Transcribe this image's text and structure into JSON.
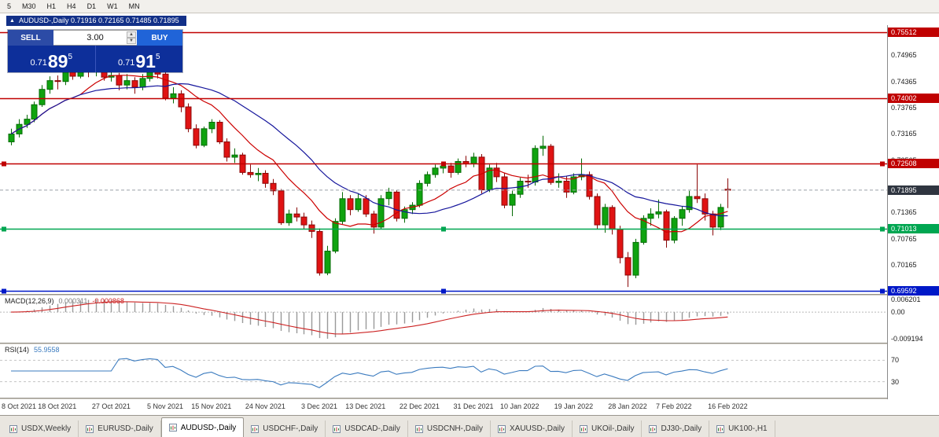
{
  "toolbar": {
    "timeframes": [
      "5",
      "M30",
      "H1",
      "H4",
      "D1",
      "W1",
      "MN"
    ]
  },
  "window": {
    "marker": "▲",
    "title": "AUDUSD-,Daily 0.71916 0.72165 0.71485 0.71895"
  },
  "one_click": {
    "sell_label": "SELL",
    "buy_label": "BUY",
    "volume": "3.00",
    "volume_up_icon": "▲",
    "volume_down_icon": "▼",
    "sell_price_prefix": "0.71",
    "sell_price_big": "89",
    "sell_price_sup": "5",
    "buy_price_prefix": "0.71",
    "buy_price_big": "91",
    "buy_price_sup": "5"
  },
  "macd_panel": {
    "name": "MACD(12,26,9)",
    "value_main": "0.000311",
    "value_signal": "-0.000868",
    "axis_top": "0.006201",
    "axis_zero": "0.00",
    "axis_bottom": "-0.009194"
  },
  "rsi_panel": {
    "name": "RSI(14)",
    "value": "55.9558",
    "axis_top": "70",
    "axis_bottom": "30"
  },
  "tabs": {
    "active_index": 2,
    "items": [
      "USDX,Weekly",
      "EURUSD-,Daily",
      "AUDUSD-,Daily",
      "USDCHF-,Daily",
      "USDCAD-,Daily",
      "USDCNH-,Daily",
      "XAUUSD-,Daily",
      "UKOil-,Daily",
      "DJ30-,Daily",
      "UK100-,H1"
    ]
  },
  "chart_data": {
    "type": "candlestick",
    "symbol": "AUDUSD-",
    "timeframe": "Daily",
    "current_price": 0.71895,
    "current_badge": {
      "label": "0.71895",
      "color": "#2f3540"
    },
    "price_range": [
      0.6952,
      0.7567
    ],
    "y_ticks": [
      0.74965,
      0.74365,
      0.73765,
      0.73165,
      0.72565,
      0.71365,
      0.70765,
      0.70165
    ],
    "levels": [
      {
        "price": 0.75512,
        "label": "0.75512",
        "color": "#c00000",
        "selected": false
      },
      {
        "price": 0.74002,
        "label": "0.74002",
        "color": "#c00000",
        "selected": false
      },
      {
        "price": 0.72508,
        "label": "0.72508",
        "color": "#c00000",
        "selected": true
      },
      {
        "price": 0.71013,
        "label": "0.71013",
        "color": "#00a651",
        "selected": true
      },
      {
        "price": 0.69592,
        "label": "0.69592",
        "color": "#0018c8",
        "selected": true
      }
    ],
    "x_labels": [
      {
        "text": "8 Oct 2021",
        "bar": 0
      },
      {
        "text": "18 Oct 2021",
        "bar": 6
      },
      {
        "text": "27 Oct 2021",
        "bar": 13
      },
      {
        "text": "5 Nov 2021",
        "bar": 20
      },
      {
        "text": "15 Nov 2021",
        "bar": 26
      },
      {
        "text": "24 Nov 2021",
        "bar": 33
      },
      {
        "text": "3 Dec 2021",
        "bar": 40
      },
      {
        "text": "13 Dec 2021",
        "bar": 46
      },
      {
        "text": "22 Dec 2021",
        "bar": 53
      },
      {
        "text": "31 Dec 2021",
        "bar": 60
      },
      {
        "text": "10 Jan 2022",
        "bar": 66
      },
      {
        "text": "19 Jan 2022",
        "bar": 73
      },
      {
        "text": "28 Jan 2022",
        "bar": 80
      },
      {
        "text": "7 Feb 2022",
        "bar": 86
      },
      {
        "text": "16 Feb 2022",
        "bar": 93
      }
    ],
    "moving_averages": [
      {
        "period": 10,
        "color": "#cc0000"
      },
      {
        "period": 21,
        "color": "#16169c"
      }
    ],
    "indicators": {
      "macd": {
        "fast": 12,
        "slow": 26,
        "signal": 9,
        "histogram_color": "#9a9a9a",
        "signal_color": "#cc2222"
      },
      "rsi": {
        "period": 14,
        "color": "#3b7bbf",
        "levels": [
          70,
          30
        ]
      }
    },
    "colors": {
      "up": "#0fa30f",
      "up_stroke": "#066b06",
      "down": "#e01313",
      "down_stroke": "#8a0808",
      "background": "#ffffff"
    },
    "ohlc": [
      [
        0.73,
        0.733,
        0.7292,
        0.7318
      ],
      [
        0.7318,
        0.7352,
        0.731,
        0.734
      ],
      [
        0.734,
        0.7362,
        0.7332,
        0.7352
      ],
      [
        0.7352,
        0.7392,
        0.7345,
        0.7385
      ],
      [
        0.7385,
        0.743,
        0.738,
        0.742
      ],
      [
        0.742,
        0.745,
        0.741,
        0.744
      ],
      [
        0.744,
        0.7452,
        0.742,
        0.7438
      ],
      [
        0.7438,
        0.7472,
        0.743,
        0.7465
      ],
      [
        0.7465,
        0.7478,
        0.7442,
        0.745
      ],
      [
        0.745,
        0.749,
        0.7445,
        0.7472
      ],
      [
        0.7472,
        0.748,
        0.7448,
        0.746
      ],
      [
        0.746,
        0.7478,
        0.745,
        0.7468
      ],
      [
        0.7468,
        0.7475,
        0.744,
        0.7448
      ],
      [
        0.7448,
        0.7468,
        0.7438,
        0.7452
      ],
      [
        0.7452,
        0.7458,
        0.7418,
        0.743
      ],
      [
        0.743,
        0.7455,
        0.742,
        0.744
      ],
      [
        0.744,
        0.7448,
        0.741,
        0.7425
      ],
      [
        0.7425,
        0.7455,
        0.7418,
        0.7445
      ],
      [
        0.7445,
        0.747,
        0.7438,
        0.746
      ],
      [
        0.746,
        0.7472,
        0.7445,
        0.7455
      ],
      [
        0.7455,
        0.7462,
        0.7395,
        0.74
      ],
      [
        0.74,
        0.7425,
        0.7388,
        0.741
      ],
      [
        0.741,
        0.7418,
        0.7368,
        0.738
      ],
      [
        0.738,
        0.7388,
        0.7322,
        0.733
      ],
      [
        0.733,
        0.734,
        0.7285,
        0.7292
      ],
      [
        0.7292,
        0.7335,
        0.7288,
        0.733
      ],
      [
        0.733,
        0.7352,
        0.732,
        0.7345
      ],
      [
        0.7345,
        0.735,
        0.7295,
        0.73
      ],
      [
        0.73,
        0.7308,
        0.7255,
        0.7265
      ],
      [
        0.7265,
        0.7285,
        0.7252,
        0.727
      ],
      [
        0.727,
        0.7275,
        0.7225,
        0.723
      ],
      [
        0.723,
        0.7248,
        0.7218,
        0.7225
      ],
      [
        0.7225,
        0.724,
        0.721,
        0.7228
      ],
      [
        0.7228,
        0.7235,
        0.7195,
        0.7205
      ],
      [
        0.7205,
        0.7215,
        0.7178,
        0.7188
      ],
      [
        0.7188,
        0.7192,
        0.711,
        0.7115
      ],
      [
        0.7115,
        0.7145,
        0.7108,
        0.7135
      ],
      [
        0.7135,
        0.715,
        0.7118,
        0.7128
      ],
      [
        0.7128,
        0.7138,
        0.71,
        0.711
      ],
      [
        0.711,
        0.712,
        0.708,
        0.7095
      ],
      [
        0.7095,
        0.7102,
        0.6994,
        0.7
      ],
      [
        0.7,
        0.7062,
        0.6995,
        0.705
      ],
      [
        0.705,
        0.7125,
        0.7045,
        0.7118
      ],
      [
        0.7118,
        0.7185,
        0.7112,
        0.717
      ],
      [
        0.717,
        0.7178,
        0.7132,
        0.7145
      ],
      [
        0.7145,
        0.7182,
        0.714,
        0.717
      ],
      [
        0.717,
        0.7178,
        0.7128,
        0.7135
      ],
      [
        0.7135,
        0.7142,
        0.709,
        0.7105
      ],
      [
        0.7105,
        0.7178,
        0.71,
        0.717
      ],
      [
        0.717,
        0.7195,
        0.7155,
        0.7185
      ],
      [
        0.7185,
        0.719,
        0.7118,
        0.7125
      ],
      [
        0.7125,
        0.7152,
        0.7115,
        0.7145
      ],
      [
        0.7145,
        0.7162,
        0.7135,
        0.7155
      ],
      [
        0.7155,
        0.7212,
        0.715,
        0.7205
      ],
      [
        0.7205,
        0.7232,
        0.7198,
        0.7225
      ],
      [
        0.7225,
        0.7248,
        0.7218,
        0.724
      ],
      [
        0.724,
        0.7255,
        0.7228,
        0.7245
      ],
      [
        0.7245,
        0.7252,
        0.7218,
        0.723
      ],
      [
        0.723,
        0.7262,
        0.7225,
        0.7255
      ],
      [
        0.7255,
        0.7268,
        0.7242,
        0.725
      ],
      [
        0.725,
        0.7275,
        0.7242,
        0.7265
      ],
      [
        0.7265,
        0.7272,
        0.7182,
        0.719
      ],
      [
        0.719,
        0.7248,
        0.7185,
        0.724
      ],
      [
        0.724,
        0.7252,
        0.7208,
        0.722
      ],
      [
        0.722,
        0.7228,
        0.7148,
        0.7155
      ],
      [
        0.7155,
        0.7188,
        0.713,
        0.718
      ],
      [
        0.718,
        0.7218,
        0.7172,
        0.721
      ],
      [
        0.721,
        0.7225,
        0.7195,
        0.7208
      ],
      [
        0.7208,
        0.7292,
        0.72,
        0.7285
      ],
      [
        0.7285,
        0.7314,
        0.7268,
        0.729
      ],
      [
        0.729,
        0.7295,
        0.7202,
        0.7207
      ],
      [
        0.7207,
        0.7228,
        0.7195,
        0.721
      ],
      [
        0.721,
        0.7222,
        0.7172,
        0.7185
      ],
      [
        0.7185,
        0.7228,
        0.718,
        0.722
      ],
      [
        0.722,
        0.7262,
        0.7212,
        0.7225
      ],
      [
        0.7225,
        0.7232,
        0.7168,
        0.7175
      ],
      [
        0.7175,
        0.7182,
        0.71,
        0.711
      ],
      [
        0.711,
        0.7158,
        0.7092,
        0.715
      ],
      [
        0.715,
        0.7155,
        0.7088,
        0.71
      ],
      [
        0.71,
        0.7108,
        0.7022,
        0.7035
      ],
      [
        0.7035,
        0.7048,
        0.6968,
        0.6995
      ],
      [
        0.6995,
        0.7078,
        0.6988,
        0.707
      ],
      [
        0.707,
        0.7132,
        0.7065,
        0.7125
      ],
      [
        0.7125,
        0.7148,
        0.7108,
        0.7135
      ],
      [
        0.7135,
        0.7168,
        0.7125,
        0.714
      ],
      [
        0.714,
        0.7145,
        0.7058,
        0.7075
      ],
      [
        0.7075,
        0.713,
        0.7068,
        0.7125
      ],
      [
        0.7125,
        0.7152,
        0.7108,
        0.7145
      ],
      [
        0.7145,
        0.7188,
        0.7138,
        0.7175
      ],
      [
        0.7175,
        0.7248,
        0.716,
        0.717
      ],
      [
        0.717,
        0.7182,
        0.712,
        0.7135
      ],
      [
        0.7135,
        0.7142,
        0.7086,
        0.7105
      ],
      [
        0.7105,
        0.7158,
        0.7098,
        0.715
      ],
      [
        0.71916,
        0.72165,
        0.71485,
        0.71895
      ]
    ]
  }
}
